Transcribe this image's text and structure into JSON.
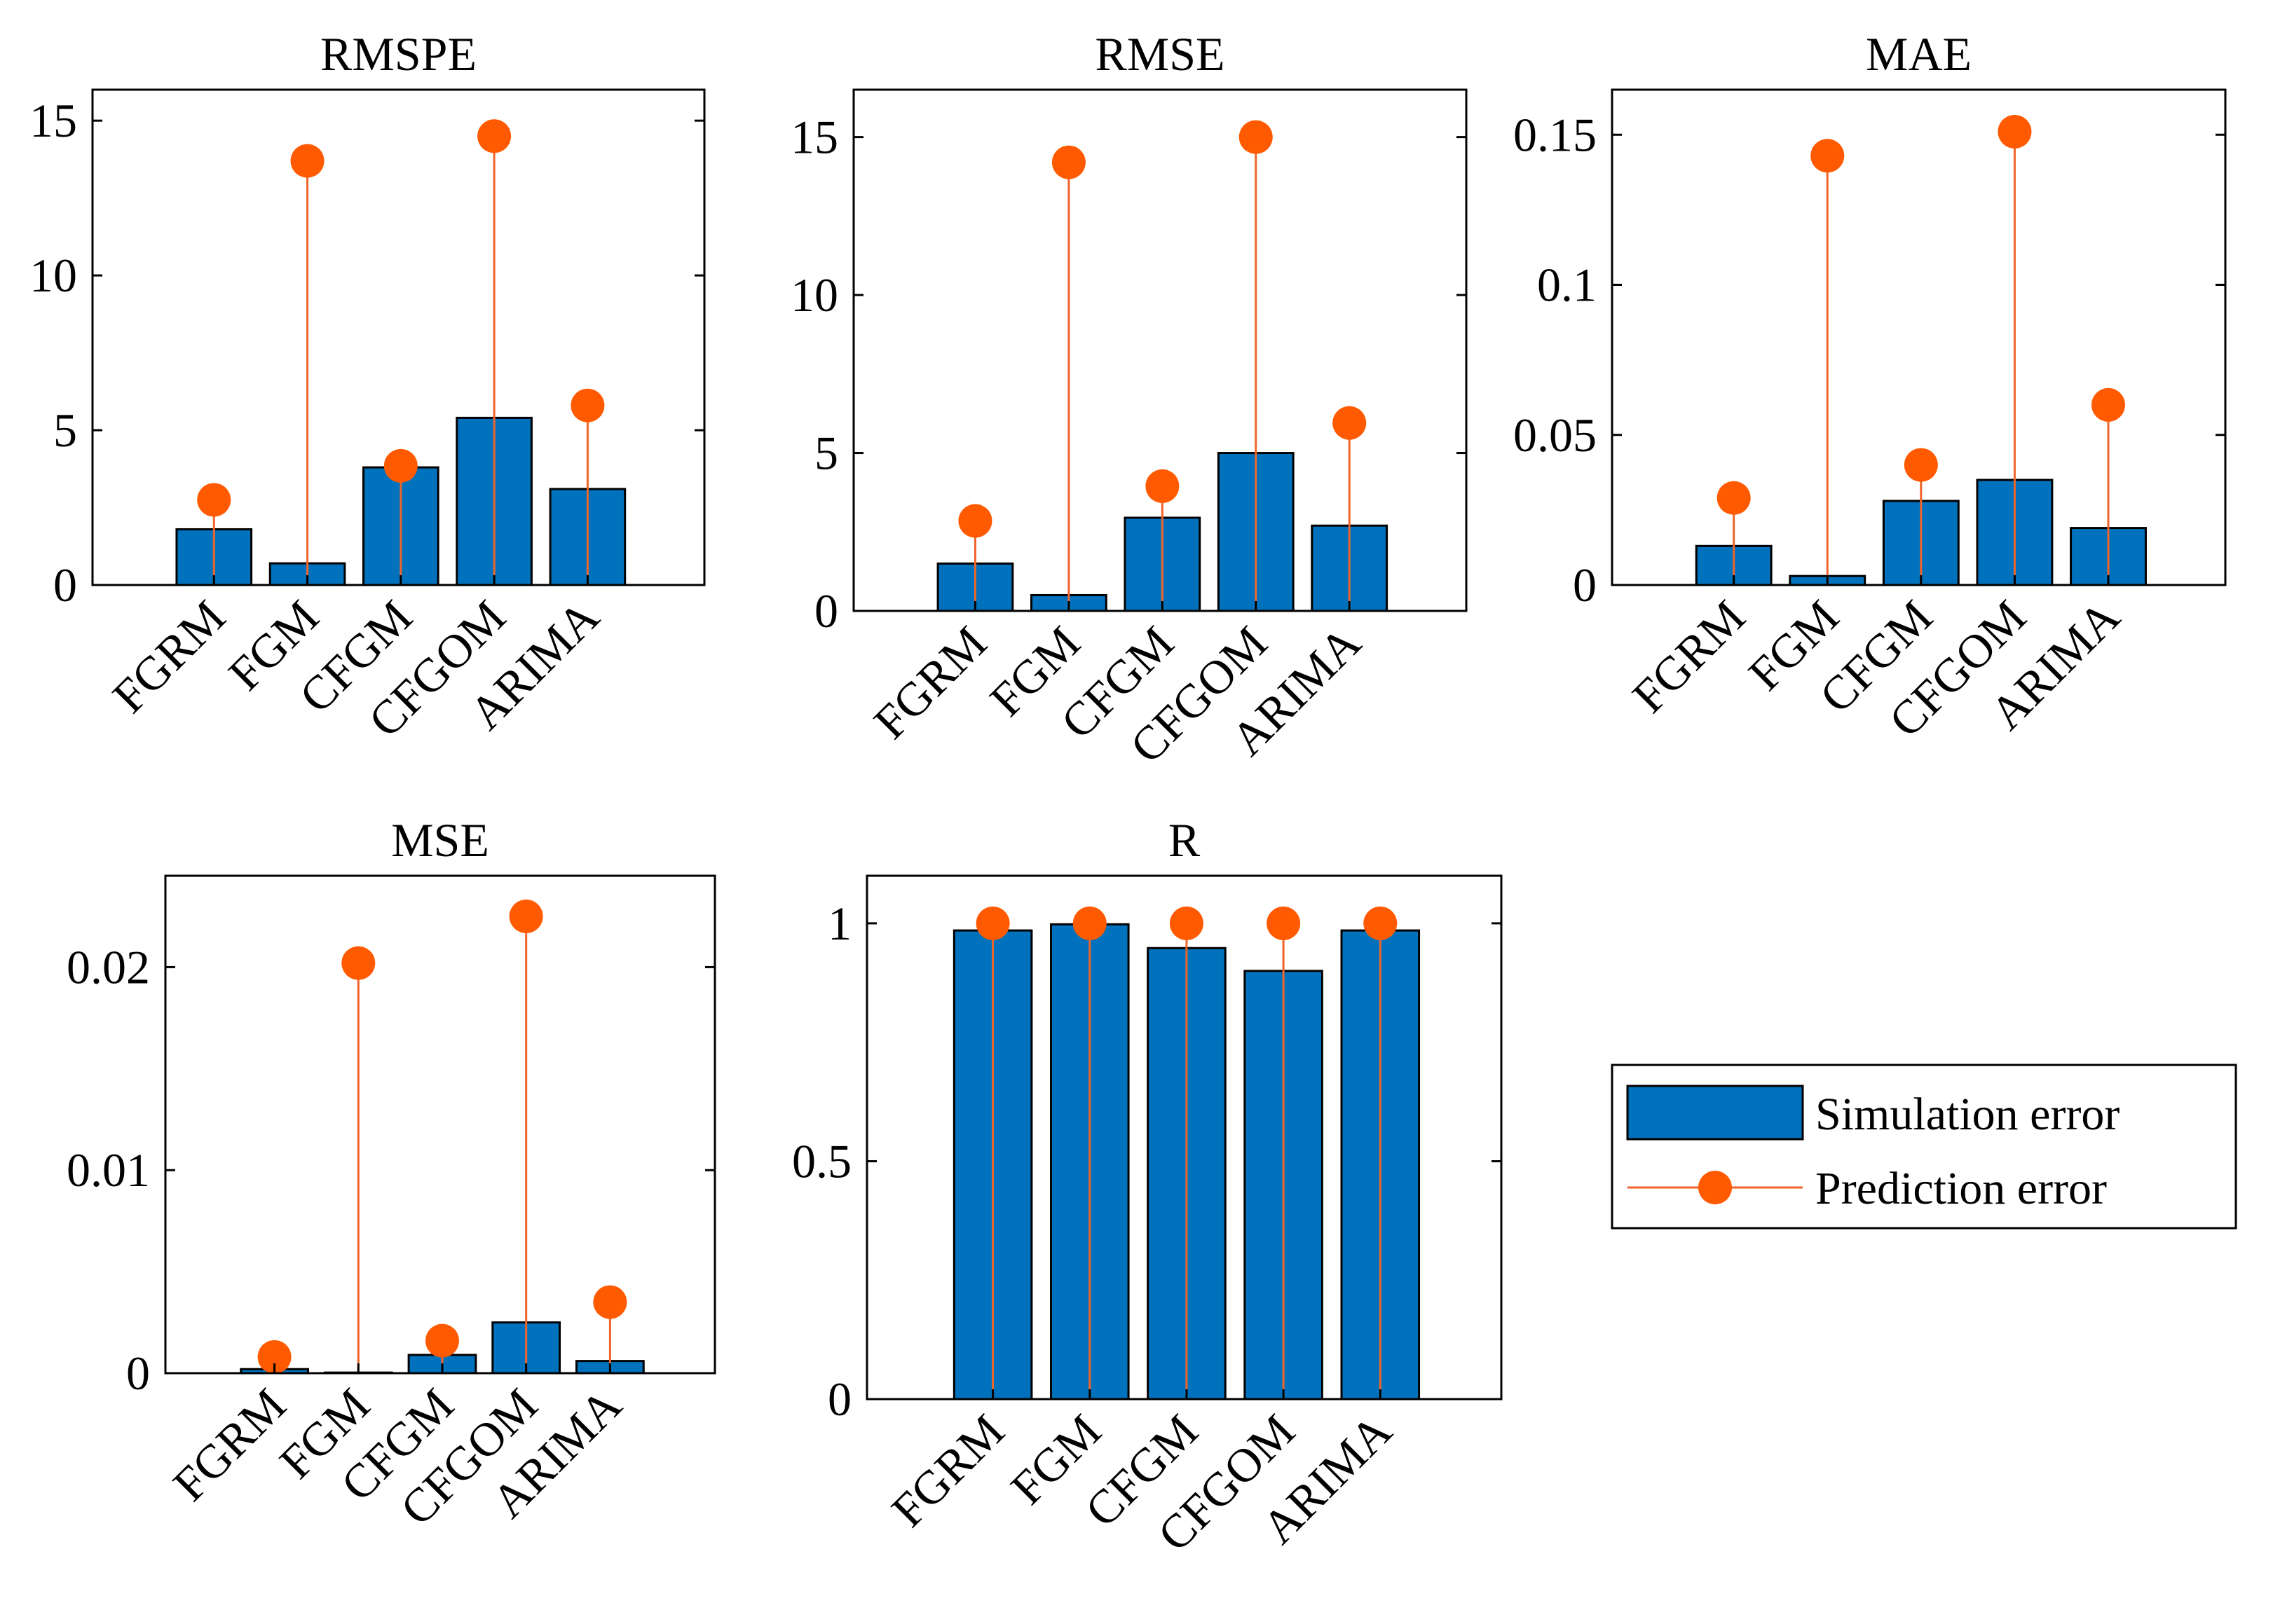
{
  "chart_data": {
    "type": "bar",
    "categories": [
      "FGRM",
      "FGM",
      "CFGM",
      "CFGOM",
      "ARIMA"
    ],
    "legend": {
      "bar_series": "Simulation error",
      "stem_series": "Prediction error",
      "placement": "right, below top row",
      "colors": {
        "bar": "#0072BD",
        "stem": "#FF5A00",
        "stem_line": "#F0642A"
      }
    },
    "panels": [
      {
        "title": "RMSPE",
        "ylim": [
          0,
          16
        ],
        "yticks": [
          0,
          5,
          10,
          15
        ],
        "ytick_labels": [
          "0",
          "5",
          "10",
          "15"
        ],
        "simulation": [
          1.8,
          0.7,
          3.8,
          5.4,
          3.1
        ],
        "prediction": [
          2.75,
          13.7,
          3.85,
          14.5,
          5.8
        ]
      },
      {
        "title": "RMSE",
        "ylim": [
          0,
          16.5
        ],
        "yticks": [
          0,
          5,
          10,
          15
        ],
        "ytick_labels": [
          "0",
          "5",
          "10",
          "15"
        ],
        "simulation": [
          1.5,
          0.5,
          2.95,
          5.0,
          2.7
        ],
        "prediction": [
          2.85,
          14.2,
          3.95,
          15.0,
          5.95
        ]
      },
      {
        "title": "MAE",
        "ylim": [
          0,
          0.165
        ],
        "yticks": [
          0,
          0.05,
          0.1,
          0.15
        ],
        "ytick_labels": [
          "0",
          "0.05",
          "0.1",
          "0.15"
        ],
        "simulation": [
          0.013,
          0.003,
          0.028,
          0.035,
          0.019
        ],
        "prediction": [
          0.029,
          0.143,
          0.04,
          0.151,
          0.06
        ]
      },
      {
        "title": "MSE",
        "ylim": [
          0,
          0.0245
        ],
        "yticks": [
          0,
          0.01,
          0.02
        ],
        "ytick_labels": [
          "0",
          "0.01",
          "0.02"
        ],
        "simulation": [
          0.0002,
          3e-05,
          0.0009,
          0.0025,
          0.0006
        ],
        "prediction": [
          0.0008,
          0.0202,
          0.0016,
          0.0225,
          0.0035
        ]
      },
      {
        "title": "R",
        "ylim": [
          0,
          1.1
        ],
        "yticks": [
          0,
          0.5,
          1
        ],
        "ytick_labels": [
          "0",
          "0.5",
          "1"
        ],
        "simulation": [
          0.985,
          0.998,
          0.948,
          0.9,
          0.985
        ],
        "prediction": [
          1.0,
          1.0,
          1.0,
          1.0,
          1.0
        ]
      }
    ]
  }
}
